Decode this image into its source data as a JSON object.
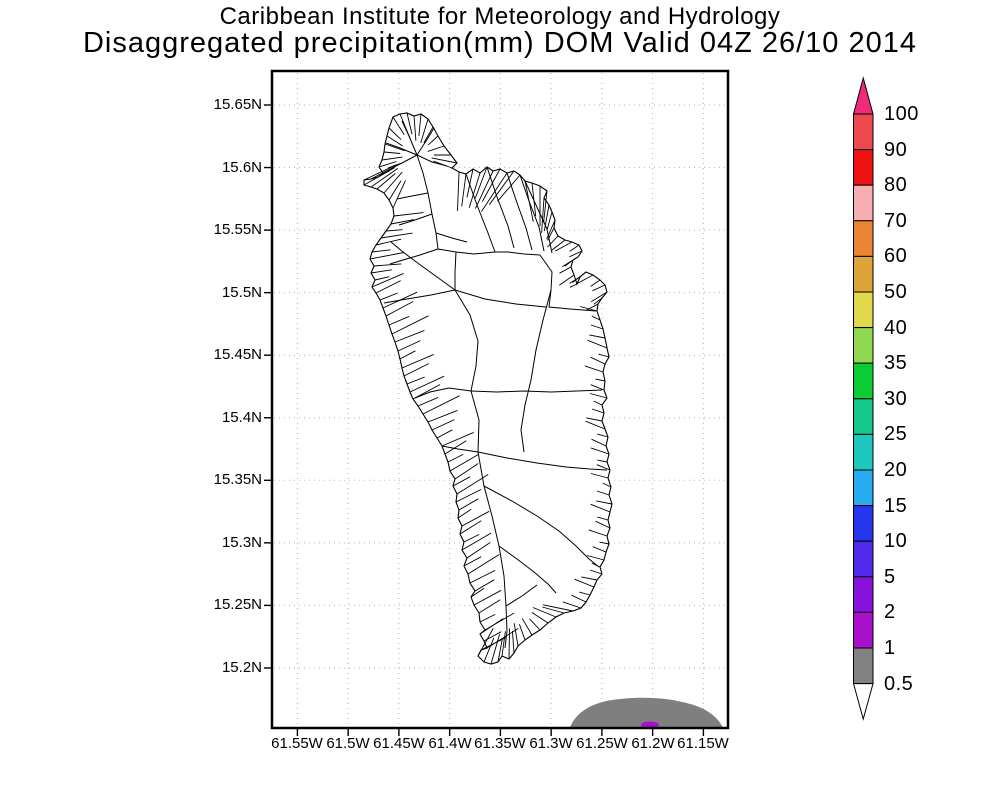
{
  "title": {
    "line1": "Caribbean Institute for Meteorology and Hydrology",
    "line2": "Disaggregated precipitation(mm) DOM Valid 04Z 26/10 2014"
  },
  "y_axis": {
    "labels": [
      "15.65N",
      "15.6N",
      "15.55N",
      "15.5N",
      "15.45N",
      "15.4N",
      "15.35N",
      "15.3N",
      "15.25N",
      "15.2N"
    ]
  },
  "x_axis": {
    "labels": [
      "61.55W",
      "61.5W",
      "61.45W",
      "61.4W",
      "61.35W",
      "61.3W",
      "61.25W",
      "61.2W",
      "61.15W"
    ]
  },
  "colorbar": {
    "labels": [
      "100",
      "90",
      "80",
      "70",
      "60",
      "50",
      "40",
      "35",
      "30",
      "25",
      "20",
      "15",
      "10",
      "5",
      "2",
      "1",
      "0.5"
    ],
    "colors": [
      "#ed4a4d",
      "#f01313",
      "#f7afb3",
      "#ec8435",
      "#dda43c",
      "#e2d84b",
      "#90d852",
      "#0bcc33",
      "#16c88c",
      "#1ec8be",
      "#2aacf0",
      "#2636ec",
      "#4f2aec",
      "#8812dc",
      "#a810cc",
      "#828282"
    ],
    "over_arrow_color": "#ef2b7c",
    "under_arrow_color": "#ffffff"
  },
  "map": {
    "region": "Dominica (DOM)",
    "outline_color": "#000000",
    "grid_color": "#b4b4b4",
    "shaded_areas": [
      {
        "range_mm": "0.5-1",
        "color": "#7f7f7f",
        "location": "offshore area at bottom edge near 61.22W"
      },
      {
        "range_mm": "1-2",
        "color": "#a810cc",
        "location": "tiny spot at bottom edge inside gray area"
      }
    ]
  },
  "chart_data": {
    "type": "heatmap",
    "title": "Disaggregated precipitation(mm) DOM Valid 04Z 26/10 2014",
    "units": "mm",
    "legend_levels": [
      0.5,
      1,
      2,
      5,
      10,
      15,
      20,
      25,
      30,
      35,
      40,
      50,
      60,
      70,
      80,
      90,
      100
    ],
    "legend_position": "right",
    "x_range_deg_west": [
      61.575,
      61.125
    ],
    "y_range_deg_north": [
      15.152,
      15.677
    ],
    "x_ticks": [
      61.55,
      61.5,
      61.45,
      61.4,
      61.35,
      61.3,
      61.25,
      61.2,
      61.15
    ],
    "y_ticks": [
      15.65,
      15.6,
      15.55,
      15.5,
      15.45,
      15.4,
      15.35,
      15.3,
      15.25,
      15.2
    ],
    "grid": "dotted",
    "data_shown": "Almost entire domain below 0.5 mm (white); one 0.5-1 mm gray lobe at the southern boundary around 61.25W-61.18W with a tiny 1-2 mm core at its base"
  }
}
